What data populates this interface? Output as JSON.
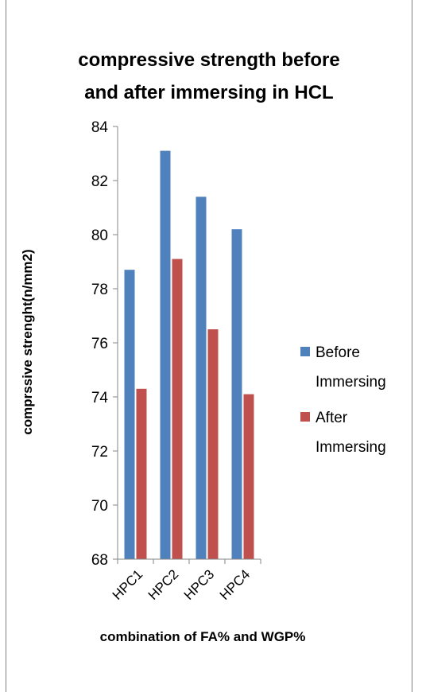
{
  "chart_data": {
    "type": "bar",
    "title_lines": [
      "compressive  strength before",
      "and after immersing in HCL"
    ],
    "xlabel": "combination of FA% and WGP%",
    "ylabel": "comprssive strenght(n/mm2)",
    "categories": [
      "HPC1",
      "HPC2",
      "HPC3",
      "HPC4"
    ],
    "ylim": [
      68,
      84
    ],
    "yticks": [
      68,
      70,
      72,
      74,
      76,
      78,
      80,
      82,
      84
    ],
    "grid": false,
    "legend_position": "right",
    "series": [
      {
        "name": "Before Immersing",
        "name_lines": [
          "Before",
          "Immersing"
        ],
        "color": "#4f81bd",
        "values": [
          78.7,
          83.1,
          81.4,
          80.2
        ]
      },
      {
        "name": "After Immersing",
        "name_lines": [
          "After",
          "Immersing"
        ],
        "color": "#c0504d",
        "values": [
          74.3,
          79.1,
          76.5,
          74.1
        ]
      }
    ]
  }
}
